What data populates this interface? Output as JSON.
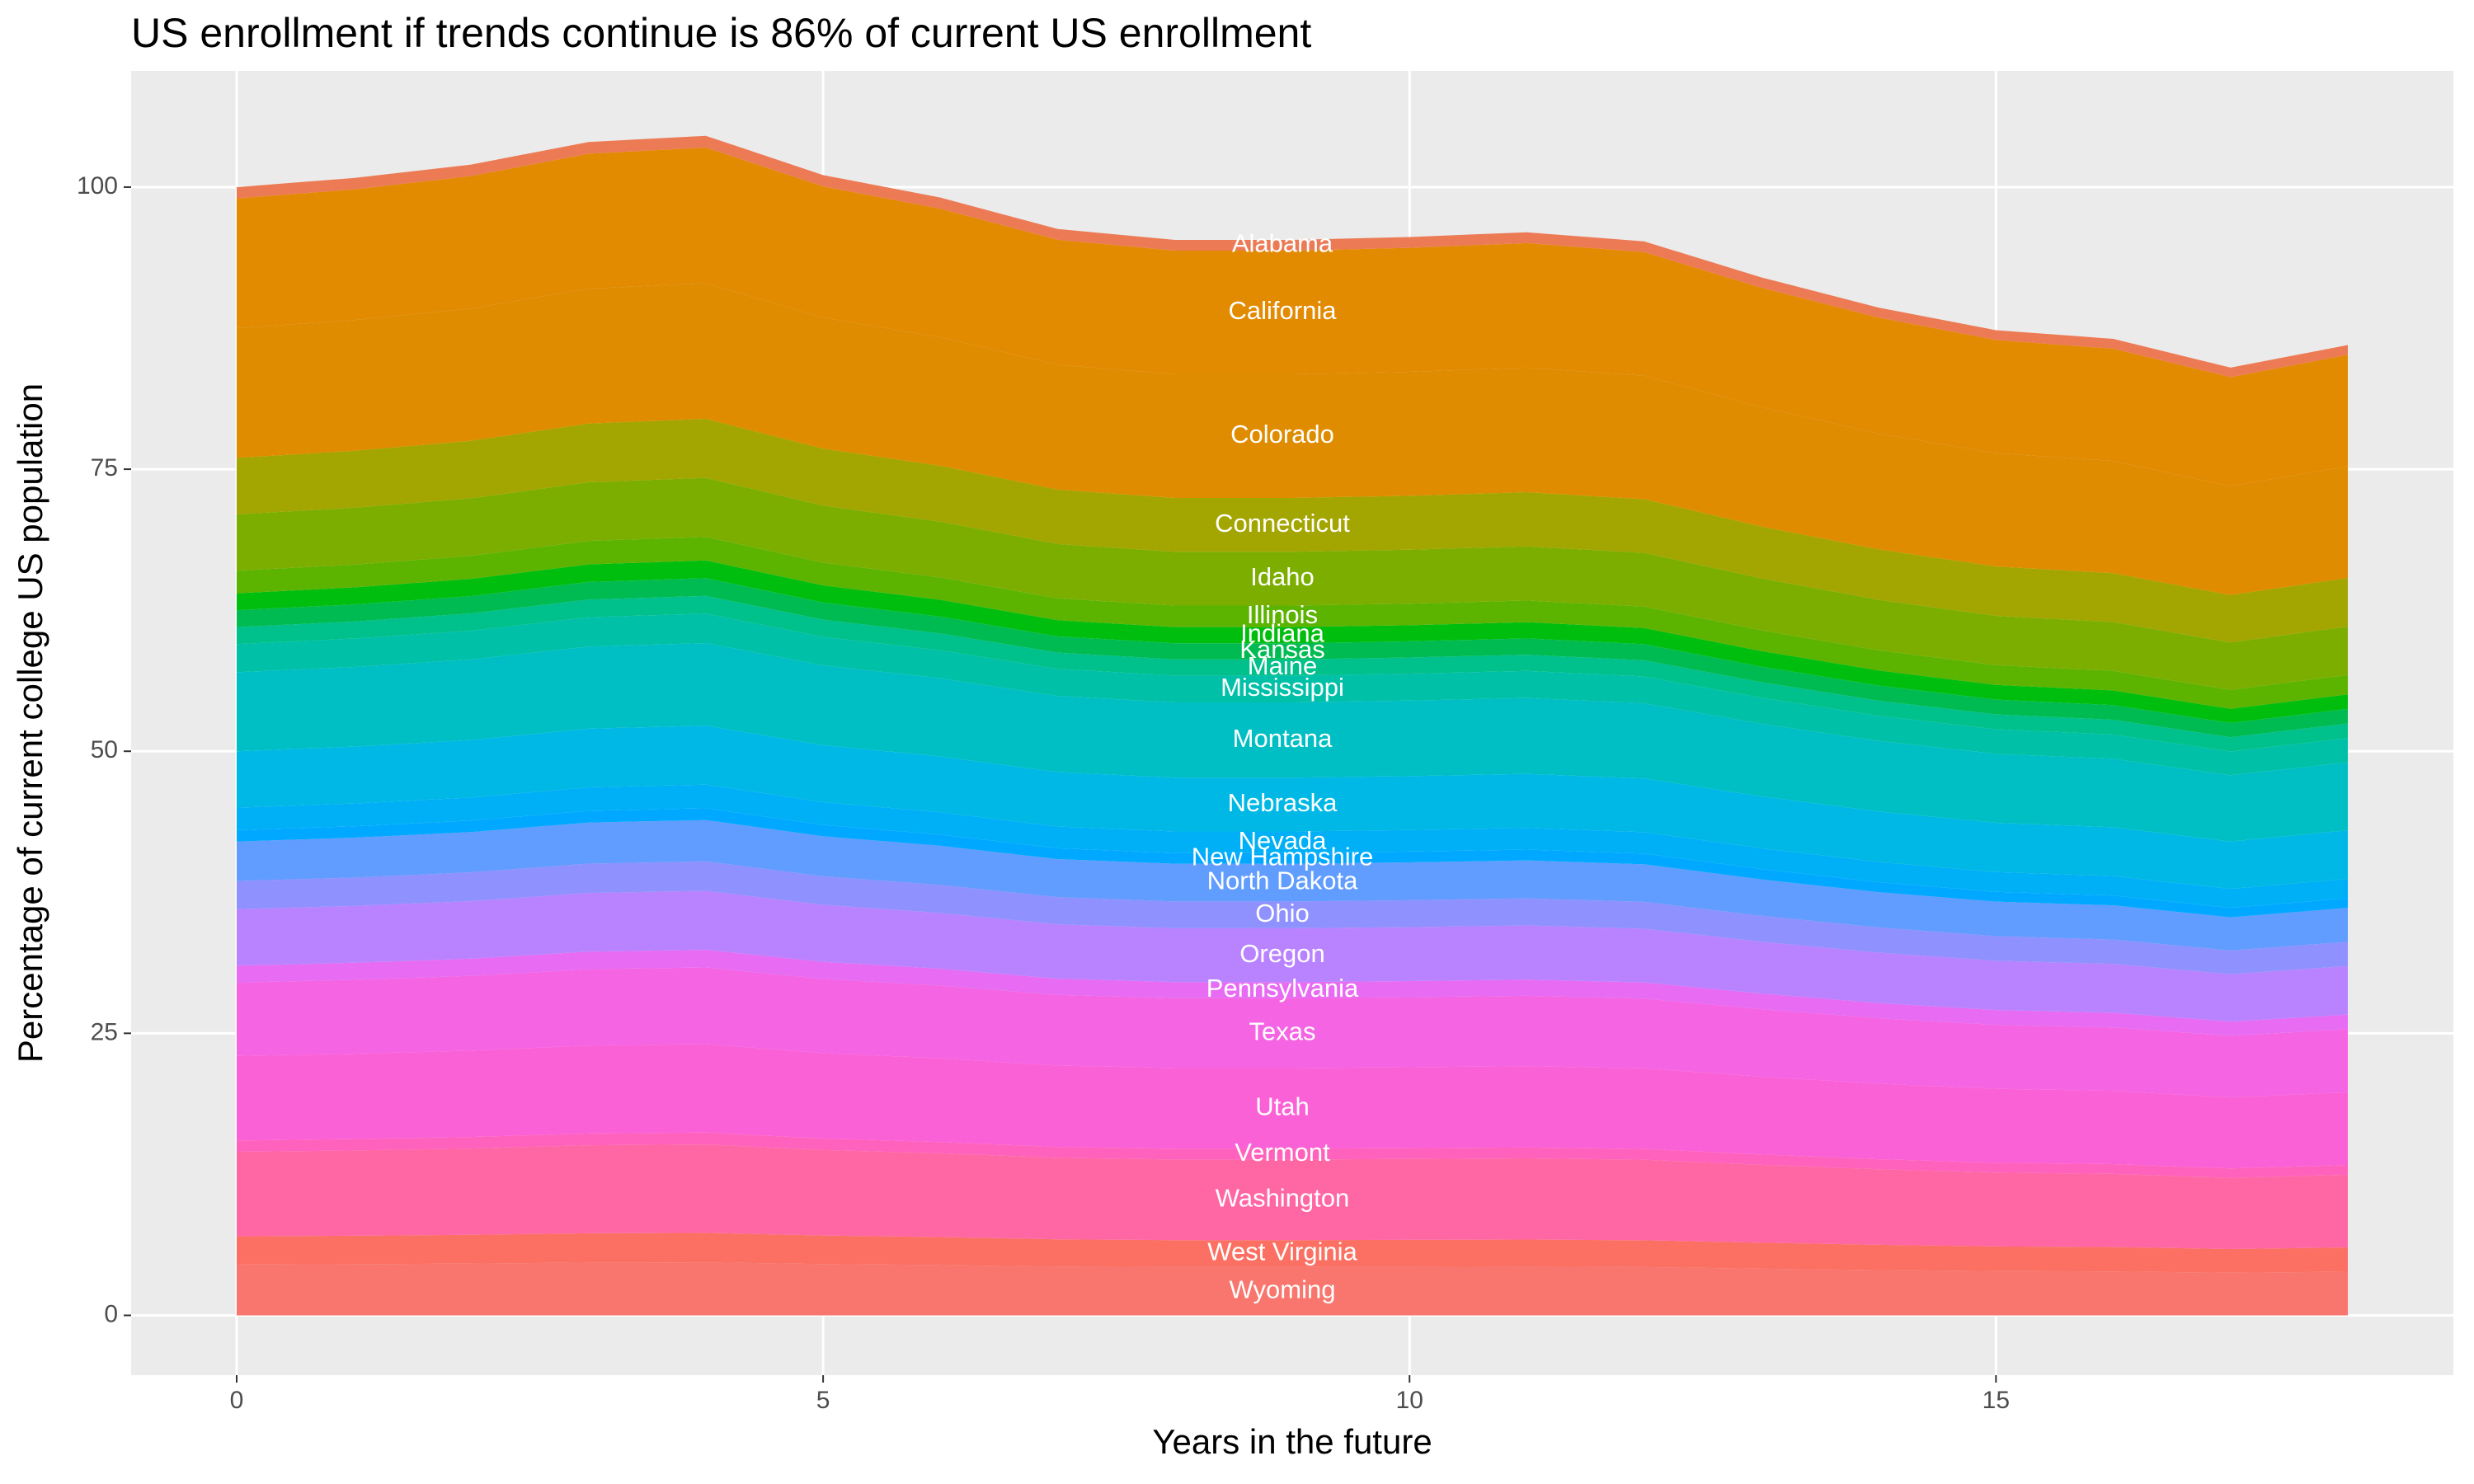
{
  "chart_data": {
    "type": "stacked-area",
    "title": "US enrollment if trends continue is 86% of current US enrollment",
    "xlabel": "Years in the future",
    "ylabel": "Percentage of current college US population",
    "x": [
      0,
      1,
      2,
      3,
      4,
      5,
      6,
      7,
      8,
      9,
      10,
      11,
      12,
      13,
      14,
      15,
      16,
      17,
      18
    ],
    "xlim": [
      -0.9,
      18.9
    ],
    "ylim": [
      -5.3,
      110.3
    ],
    "xticks": [
      0,
      5,
      10,
      15
    ],
    "yticks": [
      0,
      25,
      50,
      75,
      100
    ],
    "grid": true,
    "series": [
      {
        "name": "Wyoming",
        "color": "#f8766d",
        "values": [
          4.5,
          4.54,
          4.59,
          4.68,
          4.7,
          4.55,
          4.46,
          4.33,
          4.29,
          4.29,
          4.3,
          4.32,
          4.28,
          4.14,
          4.02,
          3.93,
          3.89,
          3.78,
          3.87
        ]
      },
      {
        "name": "West Virginia",
        "color": "#fb7063",
        "values": [
          2.5,
          2.52,
          2.55,
          2.6,
          2.61,
          2.53,
          2.48,
          2.41,
          2.38,
          2.38,
          2.39,
          2.4,
          2.38,
          2.3,
          2.23,
          2.18,
          2.16,
          2.1,
          2.15
        ]
      },
      {
        "name": "Washington",
        "color": "#ff67a4",
        "values": [
          7.5,
          7.56,
          7.65,
          7.8,
          7.84,
          7.58,
          7.43,
          7.22,
          7.15,
          7.15,
          7.17,
          7.2,
          7.14,
          6.9,
          6.7,
          6.55,
          6.49,
          6.3,
          6.45
        ]
      },
      {
        "name": "Vermont",
        "color": "#ff62bc",
        "values": [
          1,
          1.01,
          1.02,
          1.04,
          1.05,
          1.01,
          0.99,
          0.96,
          0.95,
          0.95,
          0.96,
          0.96,
          0.95,
          0.92,
          0.89,
          0.87,
          0.87,
          0.84,
          0.86
        ]
      },
      {
        "name": "Utah",
        "color": "#fb61d7",
        "values": [
          7.5,
          7.56,
          7.65,
          7.8,
          7.84,
          7.58,
          7.43,
          7.22,
          7.15,
          7.15,
          7.17,
          7.2,
          7.14,
          6.9,
          6.7,
          6.55,
          6.49,
          6.3,
          6.45
        ]
      },
      {
        "name": "Texas",
        "color": "#f564e3",
        "values": [
          6.5,
          6.55,
          6.63,
          6.76,
          6.79,
          6.57,
          6.44,
          6.26,
          6.19,
          6.19,
          6.21,
          6.24,
          6.19,
          5.98,
          5.8,
          5.67,
          5.62,
          5.46,
          5.59
        ]
      },
      {
        "name": "Pennsylvania",
        "color": "#e76bf3",
        "values": [
          1.5,
          1.51,
          1.53,
          1.56,
          1.57,
          1.52,
          1.49,
          1.44,
          1.43,
          1.43,
          1.43,
          1.44,
          1.43,
          1.38,
          1.34,
          1.31,
          1.3,
          1.26,
          1.29
        ]
      },
      {
        "name": "Oregon",
        "color": "#b983ff",
        "values": [
          5,
          5.04,
          5.1,
          5.2,
          5.23,
          5.05,
          4.95,
          4.82,
          4.77,
          4.77,
          4.78,
          4.8,
          4.76,
          4.6,
          4.47,
          4.37,
          4.33,
          4.2,
          4.3
        ]
      },
      {
        "name": "Ohio",
        "color": "#8f91ff",
        "values": [
          2.5,
          2.52,
          2.55,
          2.6,
          2.61,
          2.53,
          2.48,
          2.41,
          2.38,
          2.38,
          2.39,
          2.4,
          2.38,
          2.3,
          2.23,
          2.18,
          2.16,
          2.1,
          2.15
        ]
      },
      {
        "name": "North Dakota",
        "color": "#619cff",
        "values": [
          3.5,
          3.53,
          3.57,
          3.64,
          3.66,
          3.54,
          3.47,
          3.37,
          3.34,
          3.34,
          3.35,
          3.36,
          3.33,
          3.22,
          3.13,
          3.06,
          3.03,
          2.94,
          3.01
        ]
      },
      {
        "name": "New Hampshire",
        "color": "#00a9ff",
        "values": [
          1,
          1.01,
          1.02,
          1.04,
          1.05,
          1.01,
          0.99,
          0.96,
          0.95,
          0.95,
          0.96,
          0.96,
          0.95,
          0.92,
          0.89,
          0.87,
          0.87,
          0.84,
          0.86
        ]
      },
      {
        "name": "Nevada",
        "color": "#00b0f6",
        "values": [
          2,
          2.02,
          2.04,
          2.08,
          2.09,
          2.02,
          1.98,
          1.93,
          1.91,
          1.91,
          1.91,
          1.92,
          1.9,
          1.84,
          1.79,
          1.75,
          1.73,
          1.68,
          1.72
        ]
      },
      {
        "name": "Nebraska",
        "color": "#00b8e5",
        "values": [
          5,
          5.04,
          5.1,
          5.2,
          5.23,
          5.05,
          4.95,
          4.82,
          4.77,
          4.77,
          4.78,
          4.8,
          4.76,
          4.6,
          4.47,
          4.37,
          4.33,
          4.2,
          4.3
        ]
      },
      {
        "name": "Montana",
        "color": "#00bfc4",
        "values": [
          7,
          7.06,
          7.14,
          7.28,
          7.32,
          7.07,
          6.93,
          6.74,
          6.67,
          6.67,
          6.69,
          6.72,
          6.66,
          6.44,
          6.25,
          6.11,
          6.06,
          5.88,
          6.02
        ]
      },
      {
        "name": "Mississippi",
        "color": "#00c0a8",
        "values": [
          2.5,
          2.52,
          2.55,
          2.6,
          2.61,
          2.53,
          2.48,
          2.41,
          2.38,
          2.38,
          2.39,
          2.4,
          2.38,
          2.3,
          2.23,
          2.18,
          2.16,
          2.1,
          2.15
        ]
      },
      {
        "name": "Maine",
        "color": "#00c08b",
        "values": [
          1.5,
          1.51,
          1.53,
          1.56,
          1.57,
          1.52,
          1.49,
          1.44,
          1.43,
          1.43,
          1.43,
          1.44,
          1.43,
          1.38,
          1.34,
          1.31,
          1.3,
          1.26,
          1.29
        ]
      },
      {
        "name": "Kansas",
        "color": "#00bb52",
        "values": [
          1.5,
          1.51,
          1.53,
          1.56,
          1.57,
          1.52,
          1.49,
          1.44,
          1.43,
          1.43,
          1.43,
          1.44,
          1.43,
          1.38,
          1.34,
          1.31,
          1.3,
          1.26,
          1.29
        ]
      },
      {
        "name": "Indiana",
        "color": "#00be0e",
        "values": [
          1.5,
          1.51,
          1.53,
          1.56,
          1.57,
          1.52,
          1.49,
          1.44,
          1.43,
          1.43,
          1.43,
          1.44,
          1.43,
          1.38,
          1.34,
          1.31,
          1.3,
          1.26,
          1.29
        ]
      },
      {
        "name": "Illinois",
        "color": "#5cb300",
        "values": [
          2,
          2.02,
          2.04,
          2.08,
          2.09,
          2.02,
          1.98,
          1.93,
          1.91,
          1.91,
          1.91,
          1.92,
          1.9,
          1.84,
          1.79,
          1.75,
          1.73,
          1.68,
          1.72
        ]
      },
      {
        "name": "Idaho",
        "color": "#7cae00",
        "values": [
          5,
          5.04,
          5.1,
          5.2,
          5.23,
          5.05,
          4.95,
          4.82,
          4.77,
          4.77,
          4.78,
          4.8,
          4.76,
          4.6,
          4.47,
          4.37,
          4.33,
          4.2,
          4.3
        ]
      },
      {
        "name": "Connecticut",
        "color": "#a3a500",
        "values": [
          5,
          5.04,
          5.1,
          5.2,
          5.23,
          5.05,
          4.95,
          4.82,
          4.77,
          4.77,
          4.78,
          4.8,
          4.76,
          4.6,
          4.47,
          4.37,
          4.33,
          4.2,
          4.3
        ]
      },
      {
        "name": "Colorado",
        "color": "#df8c00",
        "values": [
          11.5,
          11.59,
          11.73,
          11.96,
          12.02,
          11.62,
          11.39,
          11.07,
          10.96,
          10.96,
          10.99,
          11.04,
          10.95,
          10.58,
          10.27,
          10.04,
          9.95,
          9.66,
          9.89
        ]
      },
      {
        "name": "California",
        "color": "#e28a00",
        "values": [
          11.5,
          11.59,
          11.73,
          11.96,
          12.02,
          11.62,
          11.39,
          11.07,
          10.96,
          10.96,
          10.99,
          11.04,
          10.95,
          10.58,
          10.27,
          10.04,
          9.95,
          9.66,
          9.89
        ]
      },
      {
        "name": "Alabama",
        "color": "#ec7b55",
        "values": [
          1,
          1.01,
          1.02,
          1.04,
          1.05,
          1.01,
          0.99,
          0.96,
          0.95,
          0.95,
          0.96,
          0.96,
          0.95,
          0.92,
          0.89,
          0.87,
          0.87,
          0.84,
          0.86
        ]
      }
    ]
  }
}
